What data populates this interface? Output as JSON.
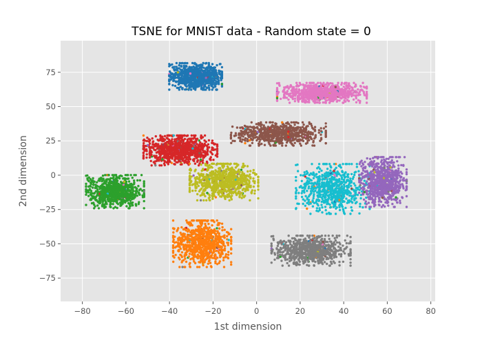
{
  "chart_data": {
    "type": "scatter",
    "title": "TSNE for MNIST data - Random state = 0",
    "xlabel": "1st dimension",
    "ylabel": "2nd dimension",
    "xlim": [
      -90,
      82
    ],
    "ylim": [
      -92,
      98
    ],
    "xticks": [
      -80,
      -60,
      -40,
      -20,
      0,
      20,
      40,
      60,
      80
    ],
    "yticks": [
      -75,
      -50,
      -25,
      0,
      25,
      50,
      75
    ],
    "grid": true,
    "background": "#e5e5e5",
    "series": [
      {
        "color": "#1f77b4",
        "center": [
          -28,
          72
        ],
        "spread": [
          10,
          8
        ],
        "count": 900
      },
      {
        "color": "#e377c2",
        "center": [
          30,
          60
        ],
        "spread": [
          17,
          6
        ],
        "count": 900
      },
      {
        "color": "#d62728",
        "center": [
          -35,
          18
        ],
        "spread": [
          14,
          9
        ],
        "count": 900
      },
      {
        "color": "#8c564b",
        "center": [
          10,
          30
        ],
        "spread": [
          18,
          7
        ],
        "count": 700
      },
      {
        "color": "#2ca02c",
        "center": [
          -65,
          -12
        ],
        "spread": [
          11,
          10
        ],
        "count": 800
      },
      {
        "color": "#bcbd22",
        "center": [
          -15,
          -5
        ],
        "spread": [
          13,
          11
        ],
        "count": 800
      },
      {
        "color": "#17becf",
        "center": [
          35,
          -10
        ],
        "spread": [
          14,
          15
        ],
        "count": 700
      },
      {
        "color": "#9467bd",
        "center": [
          58,
          -5
        ],
        "spread": [
          9,
          15
        ],
        "count": 800
      },
      {
        "color": "#ff7f0e",
        "center": [
          -25,
          -50
        ],
        "spread": [
          11,
          14
        ],
        "count": 800
      },
      {
        "color": "#7f7f7f",
        "center": [
          25,
          -55
        ],
        "spread": [
          15,
          9
        ],
        "count": 800
      }
    ]
  }
}
